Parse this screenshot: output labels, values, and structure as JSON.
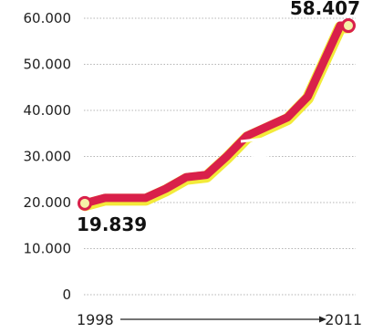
{
  "chart_data": {
    "type": "line",
    "title": "",
    "xlabel": "",
    "ylabel": "",
    "x_range_labels": [
      "1998",
      "2011"
    ],
    "x": [
      1998,
      1999,
      2000,
      2001,
      2002,
      2003,
      2004,
      2005,
      2006,
      2007,
      2008,
      2009,
      2010,
      2011
    ],
    "series": [
      {
        "values": [
          19839,
          21000,
          21000,
          21000,
          23000,
          25500,
          26000,
          30000,
          34500,
          36500,
          38500,
          43000,
          58407,
          58407
        ]
      }
    ],
    "ylim": [
      0,
      60000
    ],
    "y_ticks": [
      {
        "value": 0,
        "label": "0"
      },
      {
        "value": 10000,
        "label": "10.000"
      },
      {
        "value": 20000,
        "label": "20.000"
      },
      {
        "value": 30000,
        "label": "30.000"
      },
      {
        "value": 40000,
        "label": "40.000"
      },
      {
        "value": 50000,
        "label": "50.000"
      },
      {
        "value": 60000,
        "label": "60.000"
      }
    ],
    "start_label": "19.839",
    "end_label": "58.407",
    "grid": "dotted-horizontal",
    "colors": {
      "line": "#d9204a",
      "glow": "#f3ea3a",
      "marker_fill": "#f6f1a8",
      "grid": "#b5b5b5",
      "text": "#222222"
    }
  }
}
